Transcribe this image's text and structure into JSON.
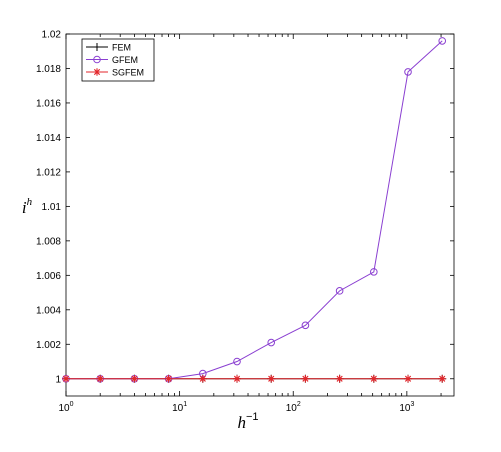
{
  "chart_data": {
    "type": "line",
    "x_scale": "log",
    "xlabel_base": "h",
    "xlabel_exp": "−1",
    "ylabel_base": "i",
    "ylabel_sup": "h",
    "xlim": [
      1,
      2600
    ],
    "ylim": [
      0.999,
      1.02
    ],
    "x_ticks": [
      {
        "value": 1,
        "base": "10",
        "exp": "0"
      },
      {
        "value": 10,
        "base": "10",
        "exp": "1"
      },
      {
        "value": 100,
        "base": "10",
        "exp": "2"
      },
      {
        "value": 1000,
        "base": "10",
        "exp": "3"
      }
    ],
    "y_ticks": [
      {
        "value": 1.0,
        "label": "1"
      },
      {
        "value": 1.002,
        "label": "1.002"
      },
      {
        "value": 1.004,
        "label": "1.004"
      },
      {
        "value": 1.006,
        "label": "1.006"
      },
      {
        "value": 1.008,
        "label": "1.008"
      },
      {
        "value": 1.01,
        "label": "1.01"
      },
      {
        "value": 1.012,
        "label": "1.012"
      },
      {
        "value": 1.014,
        "label": "1.014"
      },
      {
        "value": 1.016,
        "label": "1.016"
      },
      {
        "value": 1.018,
        "label": "1.018"
      },
      {
        "value": 1.02,
        "label": "1.02"
      }
    ],
    "grid": false,
    "legend_position": "top-left",
    "x": [
      1,
      2,
      4,
      8,
      16,
      32,
      64,
      128,
      256,
      512,
      1024,
      2048
    ],
    "series": [
      {
        "name": "FEM",
        "color": "#000000",
        "marker": "plus",
        "values": [
          1,
          1,
          1,
          1,
          1,
          1,
          1,
          1,
          1,
          1,
          1,
          1
        ]
      },
      {
        "name": "GFEM",
        "color": "#8a3fd1",
        "marker": "circle",
        "values": [
          1.0,
          1.0,
          1.0,
          1.0,
          1.0003,
          1.001,
          1.0021,
          1.0031,
          1.0051,
          1.0062,
          1.0178,
          1.0196
        ]
      },
      {
        "name": "SGFEM",
        "color": "#e3262b",
        "marker": "asterisk",
        "values": [
          1,
          1,
          1,
          1,
          1,
          1,
          1,
          1,
          1,
          1,
          1,
          1
        ]
      }
    ]
  }
}
